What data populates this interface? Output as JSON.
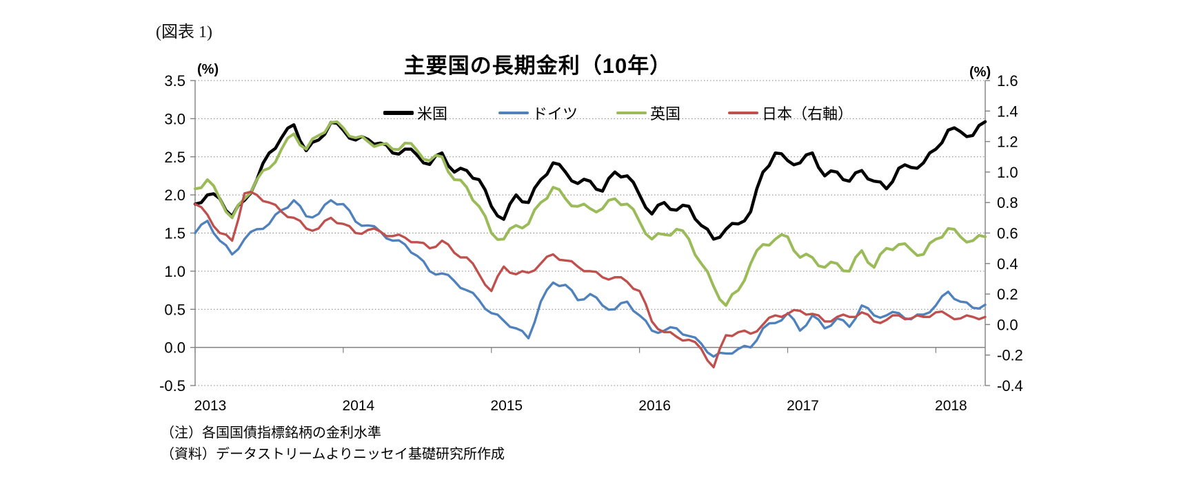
{
  "figure_label": "(図表 1)",
  "title": "主要国の長期金利（10年）",
  "axes_units": {
    "left": "(%)",
    "right": "(%)"
  },
  "legend": [
    {
      "key": "us",
      "label": "米国",
      "color": "#000000"
    },
    {
      "key": "germany",
      "label": "ドイツ",
      "color": "#4F81BD"
    },
    {
      "key": "uk",
      "label": "英国",
      "color": "#9BBB59"
    },
    {
      "key": "japan",
      "label": "日本（右軸）",
      "color": "#C0504D"
    }
  ],
  "notes": {
    "note1": "（注）各国国債指標銘柄の金利水準",
    "note2": "（資料）データストリームよりニッセイ基礎研究所作成"
  },
  "chart_data": {
    "type": "line",
    "title": "主要国の長期金利（10年）",
    "x_interval": "monthly",
    "x_start": "2013-01",
    "x_end": "2018-05",
    "x_tick_labels": [
      "2013",
      "2014",
      "2015",
      "2016",
      "2017",
      "2018"
    ],
    "left_axis": {
      "label": "(%)",
      "min": -0.5,
      "max": 3.5,
      "tick_step": 0.5,
      "tick_labels": [
        "3.5",
        "3.0",
        "2.5",
        "2.0",
        "1.5",
        "1.0",
        "0.5",
        "0.0",
        "-0.5"
      ]
    },
    "right_axis": {
      "label": "(%)",
      "min": -0.4,
      "max": 1.6,
      "tick_step": 0.2,
      "tick_labels": [
        "1.6",
        "1.4",
        "1.2",
        "1.0",
        "0.8",
        "0.6",
        "0.4",
        "0.2",
        "0.0",
        "-0.2",
        "-0.4"
      ]
    },
    "grid": "dotted horizontal gridlines at 0.5 steps of left axis; solid horizontal line at 0.0",
    "legend_position": "top-inside",
    "series": [
      {
        "key": "us",
        "name": "米国",
        "axis": "left",
        "color": "#000000",
        "line_width": 4.5,
        "values": [
          1.88,
          2.0,
          1.95,
          1.72,
          1.93,
          2.2,
          2.55,
          2.75,
          2.92,
          2.58,
          2.72,
          2.95,
          2.85,
          2.72,
          2.73,
          2.68,
          2.55,
          2.6,
          2.52,
          2.4,
          2.55,
          2.3,
          2.32,
          2.2,
          1.85,
          1.68,
          2.0,
          1.9,
          2.2,
          2.42,
          2.3,
          2.15,
          2.18,
          2.05,
          2.3,
          2.25,
          2.0,
          1.75,
          1.9,
          1.8,
          1.85,
          1.6,
          1.42,
          1.55,
          1.62,
          1.78,
          2.3,
          2.55,
          2.45,
          2.42,
          2.55,
          2.25,
          2.3,
          2.18,
          2.32,
          2.18,
          2.08,
          2.35,
          2.36,
          2.42,
          2.6,
          2.85,
          2.83,
          2.78,
          2.96
        ]
      },
      {
        "key": "germany",
        "name": "ドイツ",
        "axis": "left",
        "color": "#4F81BD",
        "line_width": 3.4,
        "values": [
          1.5,
          1.66,
          1.4,
          1.22,
          1.42,
          1.55,
          1.62,
          1.8,
          1.93,
          1.72,
          1.75,
          1.93,
          1.88,
          1.65,
          1.6,
          1.52,
          1.4,
          1.35,
          1.2,
          1.0,
          0.97,
          0.87,
          0.75,
          0.62,
          0.45,
          0.35,
          0.25,
          0.12,
          0.6,
          0.85,
          0.82,
          0.62,
          0.7,
          0.55,
          0.5,
          0.6,
          0.42,
          0.22,
          0.22,
          0.25,
          0.15,
          0.05,
          -0.12,
          -0.08,
          -0.02,
          0.0,
          0.25,
          0.32,
          0.45,
          0.22,
          0.42,
          0.25,
          0.38,
          0.27,
          0.55,
          0.42,
          0.42,
          0.45,
          0.37,
          0.43,
          0.55,
          0.73,
          0.6,
          0.52,
          0.56
        ]
      },
      {
        "key": "uk",
        "name": "英国",
        "axis": "left",
        "color": "#9BBB59",
        "line_width": 4.0,
        "values": [
          2.08,
          2.2,
          1.95,
          1.7,
          1.95,
          2.2,
          2.35,
          2.6,
          2.8,
          2.6,
          2.78,
          2.95,
          2.88,
          2.75,
          2.7,
          2.66,
          2.6,
          2.68,
          2.58,
          2.45,
          2.5,
          2.2,
          2.1,
          1.85,
          1.5,
          1.42,
          1.6,
          1.62,
          1.9,
          2.1,
          1.95,
          1.85,
          1.82,
          1.82,
          1.95,
          1.88,
          1.65,
          1.42,
          1.48,
          1.55,
          1.42,
          1.1,
          0.8,
          0.55,
          0.75,
          1.1,
          1.35,
          1.42,
          1.45,
          1.18,
          1.18,
          1.05,
          1.1,
          1.0,
          1.27,
          1.05,
          1.3,
          1.35,
          1.28,
          1.22,
          1.42,
          1.56,
          1.45,
          1.4,
          1.45
        ]
      },
      {
        "key": "japan",
        "name": "日本（右軸）",
        "axis": "right",
        "color": "#C0504D",
        "line_width": 3.4,
        "values": [
          0.79,
          0.72,
          0.6,
          0.55,
          0.86,
          0.85,
          0.8,
          0.74,
          0.7,
          0.63,
          0.63,
          0.7,
          0.66,
          0.6,
          0.62,
          0.61,
          0.58,
          0.57,
          0.54,
          0.5,
          0.55,
          0.47,
          0.44,
          0.33,
          0.22,
          0.38,
          0.33,
          0.34,
          0.4,
          0.46,
          0.42,
          0.38,
          0.35,
          0.31,
          0.31,
          0.28,
          0.22,
          0.02,
          -0.05,
          -0.08,
          -0.1,
          -0.16,
          -0.28,
          -0.07,
          -0.05,
          -0.06,
          0.0,
          0.06,
          0.07,
          0.09,
          0.07,
          0.02,
          0.05,
          0.05,
          0.08,
          0.02,
          0.03,
          0.06,
          0.04,
          0.05,
          0.08,
          0.06,
          0.04,
          0.05,
          0.05
        ]
      }
    ]
  },
  "render": {
    "jitter": {
      "us": 0.04,
      "germany": 0.03,
      "uk": 0.045,
      "japan": 0.015
    }
  }
}
